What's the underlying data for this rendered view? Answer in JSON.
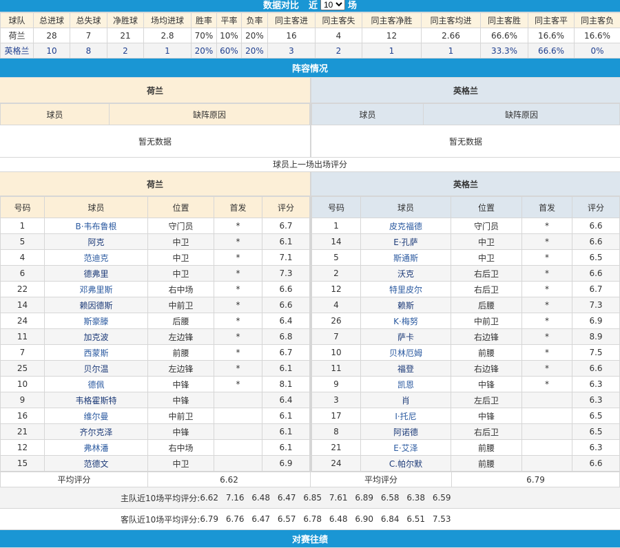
{
  "top_bar": {
    "title": "数据对比",
    "near": "近",
    "select_value": "10",
    "unit": "场"
  },
  "stats": {
    "headers": [
      "球队",
      "总进球",
      "总失球",
      "净胜球",
      "场均进球",
      "胜率",
      "平率",
      "负率",
      "同主客进",
      "同主客失",
      "同主客净胜",
      "同主客均进",
      "同主客胜",
      "同主客平",
      "同主客负"
    ],
    "rows": [
      [
        "荷兰",
        "28",
        "7",
        "21",
        "2.8",
        "70%",
        "10%",
        "20%",
        "16",
        "4",
        "12",
        "2.66",
        "66.6%",
        "16.6%",
        "16.6%"
      ],
      [
        "英格兰",
        "10",
        "8",
        "2",
        "1",
        "20%",
        "60%",
        "20%",
        "3",
        "2",
        "1",
        "1",
        "33.3%",
        "66.6%",
        "0%"
      ]
    ]
  },
  "lineup": {
    "title": "阵容情况",
    "home": "荷兰",
    "away": "英格兰",
    "col_player": "球员",
    "col_reason": "缺阵原因",
    "no_data": "暂无数据"
  },
  "ratings": {
    "caption": "球员上一场出场评分",
    "home": "荷兰",
    "away": "英格兰",
    "headers": [
      "号码",
      "球员",
      "位置",
      "首发",
      "评分"
    ],
    "home_players": [
      [
        "1",
        "B·韦布鲁根",
        "守门员",
        "*",
        "6.7"
      ],
      [
        "5",
        "阿克",
        "中卫",
        "*",
        "6.1"
      ],
      [
        "4",
        "范迪克",
        "中卫",
        "*",
        "7.1"
      ],
      [
        "6",
        "德弗里",
        "中卫",
        "*",
        "7.3"
      ],
      [
        "22",
        "邓弗里斯",
        "右中场",
        "*",
        "6.6"
      ],
      [
        "14",
        "赖因德斯",
        "中前卫",
        "*",
        "6.6"
      ],
      [
        "24",
        "斯豪滕",
        "后腰",
        "*",
        "6.4"
      ],
      [
        "11",
        "加克波",
        "左边锋",
        "*",
        "6.8"
      ],
      [
        "7",
        "西蒙斯",
        "前腰",
        "*",
        "6.7"
      ],
      [
        "25",
        "贝尔温",
        "左边锋",
        "*",
        "6.1"
      ],
      [
        "10",
        "德佩",
        "中锋",
        "*",
        "8.1"
      ],
      [
        "9",
        "韦格霍斯特",
        "中锋",
        "",
        "6.4"
      ],
      [
        "16",
        "维尔曼",
        "中前卫",
        "",
        "6.1"
      ],
      [
        "21",
        "齐尔克泽",
        "中锋",
        "",
        "6.1"
      ],
      [
        "12",
        "弗林潘",
        "右中场",
        "",
        "6.1"
      ],
      [
        "15",
        "范德文",
        "中卫",
        "",
        "6.9"
      ]
    ],
    "away_players": [
      [
        "1",
        "皮克福德",
        "守门员",
        "*",
        "6.6"
      ],
      [
        "14",
        "E·孔萨",
        "中卫",
        "*",
        "6.6"
      ],
      [
        "5",
        "斯通斯",
        "中卫",
        "*",
        "6.5"
      ],
      [
        "2",
        "沃克",
        "右后卫",
        "*",
        "6.6"
      ],
      [
        "12",
        "特里皮尔",
        "右后卫",
        "*",
        "6.7"
      ],
      [
        "4",
        "赖斯",
        "后腰",
        "*",
        "7.3"
      ],
      [
        "26",
        "K·梅努",
        "中前卫",
        "*",
        "6.9"
      ],
      [
        "7",
        "萨卡",
        "右边锋",
        "*",
        "8.9"
      ],
      [
        "10",
        "贝林厄姆",
        "前腰",
        "*",
        "7.5"
      ],
      [
        "11",
        "福登",
        "右边锋",
        "*",
        "6.6"
      ],
      [
        "9",
        "凯恩",
        "中锋",
        "*",
        "6.3"
      ],
      [
        "3",
        "肖",
        "左后卫",
        "",
        "6.3"
      ],
      [
        "17",
        "I·托尼",
        "中锋",
        "",
        "6.5"
      ],
      [
        "8",
        "阿诺德",
        "右后卫",
        "",
        "6.5"
      ],
      [
        "21",
        "E·艾泽",
        "前腰",
        "",
        "6.3"
      ],
      [
        "24",
        "C.帕尔默",
        "前腰",
        "",
        "6.6"
      ]
    ],
    "avg_label": "平均评分",
    "home_avg": "6.62",
    "away_avg": "6.79",
    "home_trend_label": "主队近10场平均评分:",
    "home_trend": [
      "6.62",
      "7.16",
      "6.48",
      "6.47",
      "6.85",
      "7.61",
      "6.89",
      "6.58",
      "6.38",
      "6.59"
    ],
    "away_trend_label": "客队近10场平均评分:",
    "away_trend": [
      "6.79",
      "6.76",
      "6.47",
      "6.57",
      "6.78",
      "6.48",
      "6.90",
      "6.84",
      "6.51",
      "7.53"
    ]
  },
  "h2h": {
    "title": "对赛往绩"
  },
  "colors": {
    "bar": "#1a96d4",
    "home_header": "#fcefd7",
    "away_header": "#dde6ee",
    "link": "#2b5aa0"
  }
}
